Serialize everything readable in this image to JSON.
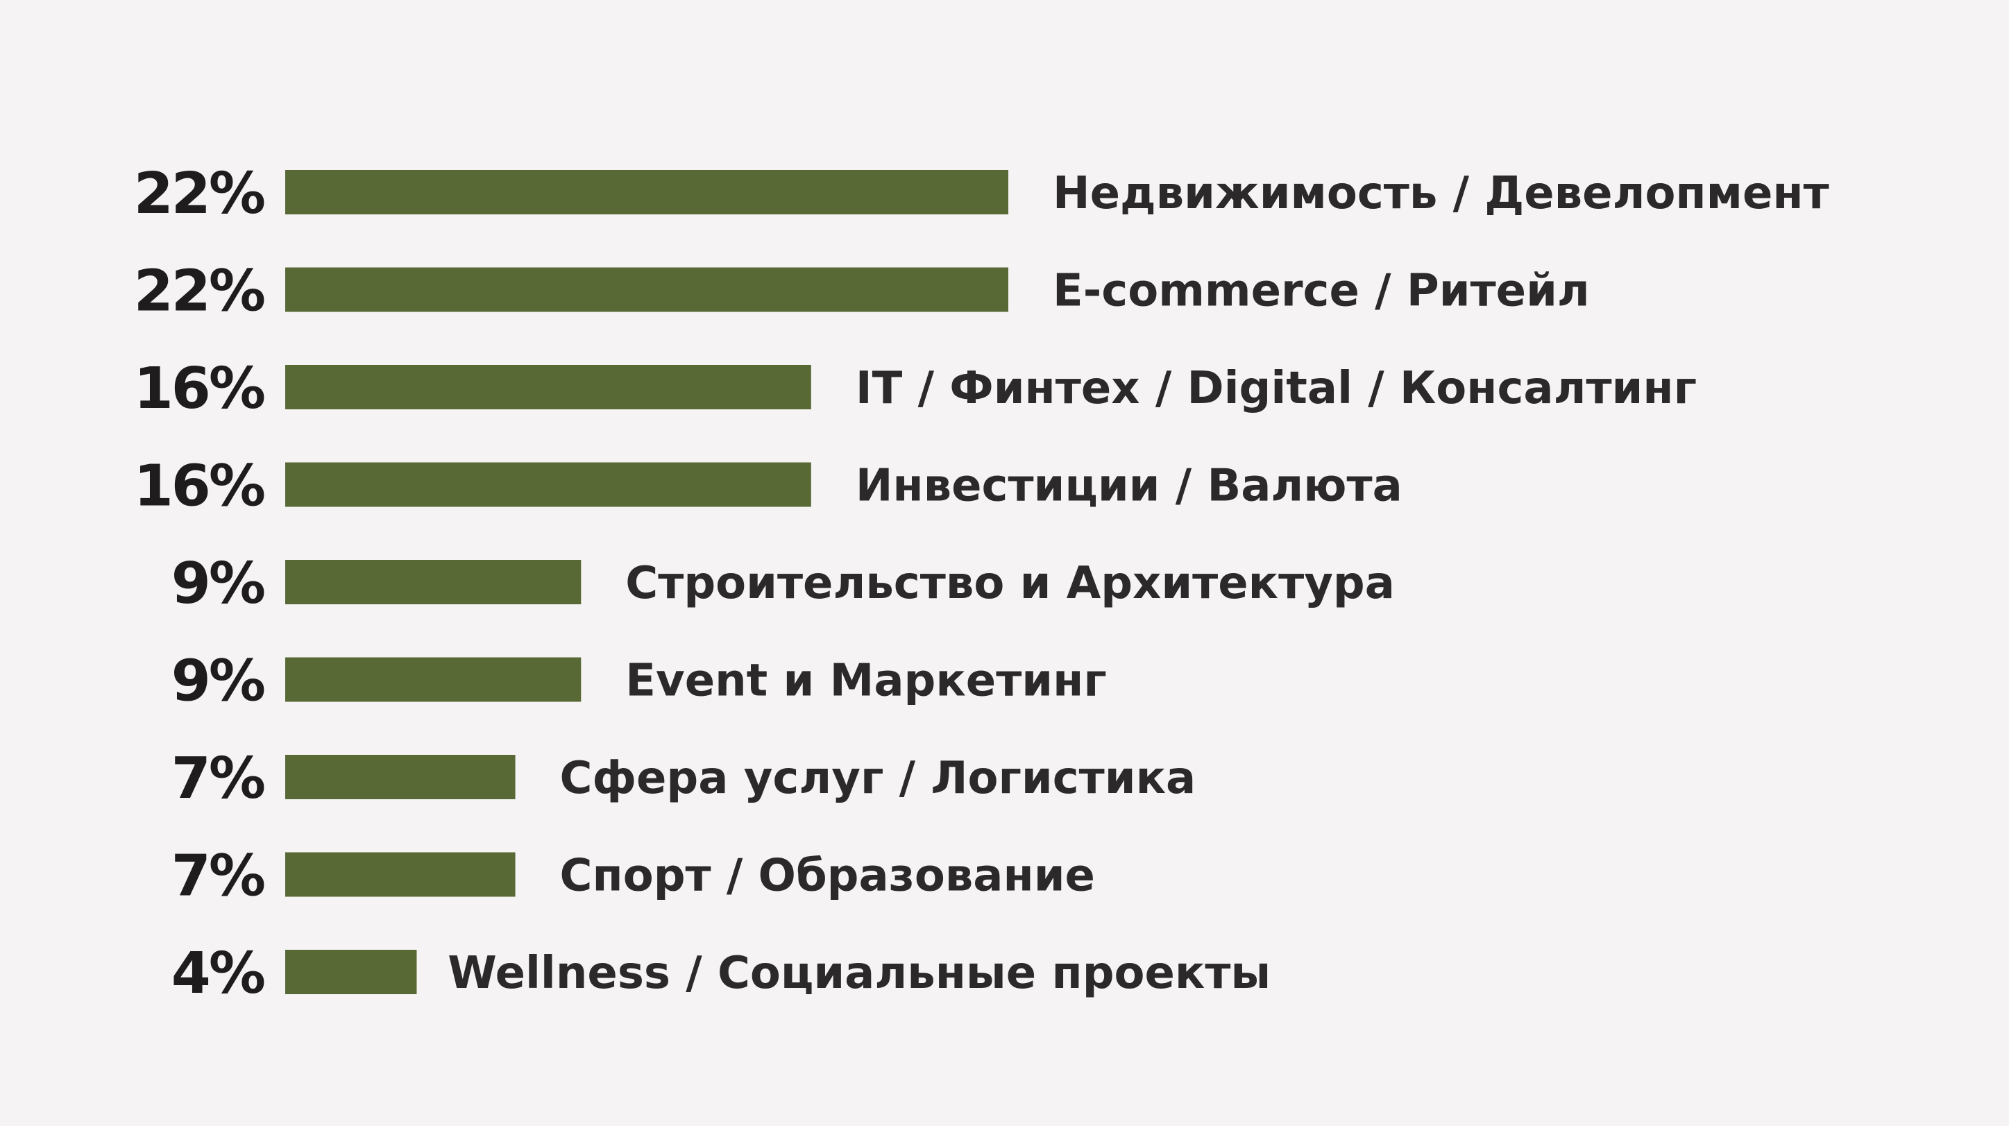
{
  "colors": {
    "background": "#f5f3f4",
    "bar": "#586935",
    "text": "#1e1c1d"
  },
  "chart_data": {
    "type": "bar",
    "orientation": "horizontal",
    "title": "",
    "xlabel": "",
    "ylabel": "",
    "xlim": [
      0,
      22
    ],
    "grid": false,
    "legend": "none",
    "categories": [
      "Недвижимость / Девелопмент",
      "E-commerce / Ритейл",
      "IT / Финтех / Digital / Консалтинг",
      "Инвестиции / Валюта",
      "Строительство и Архитектура",
      "Event и Маркетинг",
      "Сфера услуг / Логистика",
      "Спорт / Образование",
      "Wellness / Социальные проекты"
    ],
    "values": [
      22,
      22,
      16,
      16,
      9,
      9,
      7,
      7,
      4
    ],
    "value_labels": [
      "22%",
      "22%",
      "16%",
      "16%",
      "9%",
      "9%",
      "7%",
      "7%",
      "4%"
    ]
  }
}
